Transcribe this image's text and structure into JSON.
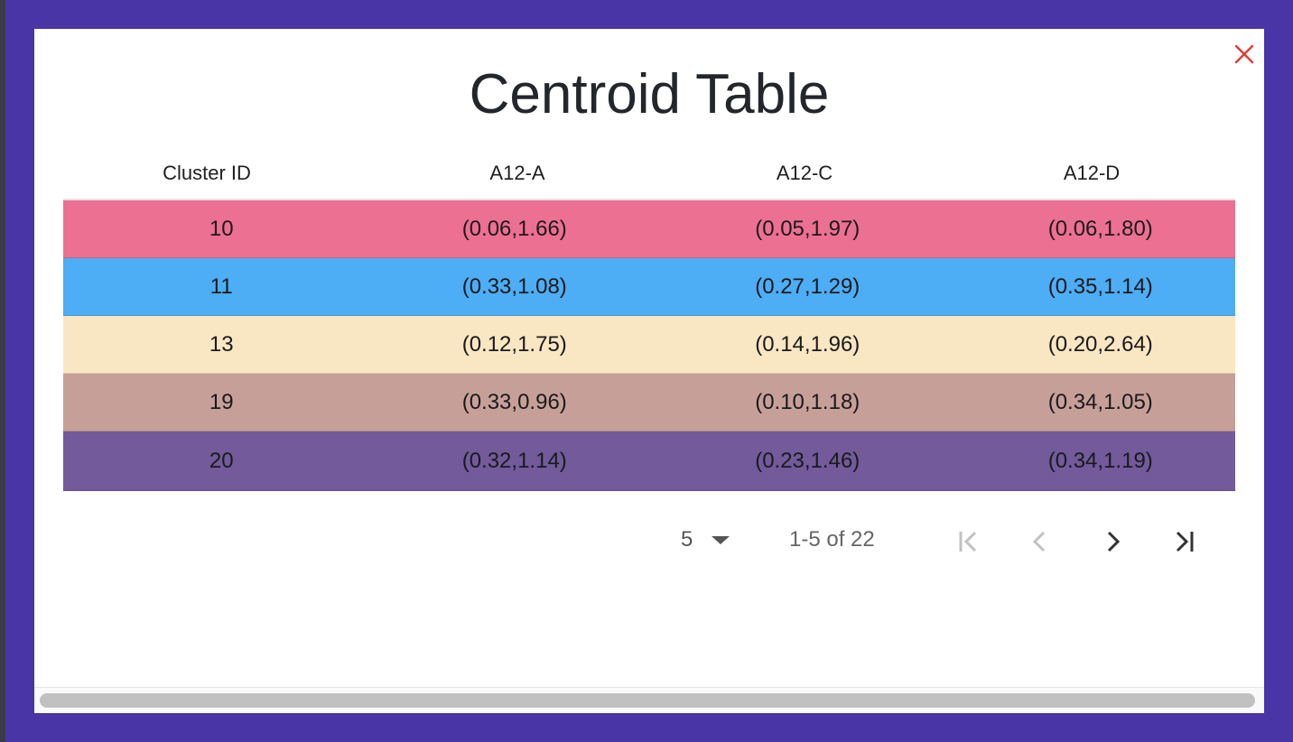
{
  "modal": {
    "title": "Centroid Table",
    "close_label": "×"
  },
  "table": {
    "headers": [
      "Cluster ID",
      "A12-A",
      "A12-C",
      "A12-D"
    ],
    "rows": [
      {
        "id": "10",
        "a": "(0.06,1.66)",
        "c": "(0.05,1.97)",
        "d": "(0.06,1.80)",
        "color": "#ec7091"
      },
      {
        "id": "11",
        "a": "(0.33,1.08)",
        "c": "(0.27,1.29)",
        "d": "(0.35,1.14)",
        "color": "#4dadf5"
      },
      {
        "id": "13",
        "a": "(0.12,1.75)",
        "c": "(0.14,1.96)",
        "d": "(0.20,2.64)",
        "color": "#f9e6c3"
      },
      {
        "id": "19",
        "a": "(0.33,0.96)",
        "c": "(0.10,1.18)",
        "d": "(0.34,1.05)",
        "color": "#c79f99"
      },
      {
        "id": "20",
        "a": "(0.32,1.14)",
        "c": "(0.23,1.46)",
        "d": "(0.34,1.19)",
        "color": "#725a9b"
      }
    ]
  },
  "pagination": {
    "rows_per_page": "5",
    "range_text": "1-5 of 22",
    "icons": [
      "first-page-icon",
      "previous-page-icon",
      "next-page-icon",
      "last-page-icon"
    ]
  },
  "colors": {
    "backdrop": "#4a35a6",
    "close": "#e53935"
  }
}
